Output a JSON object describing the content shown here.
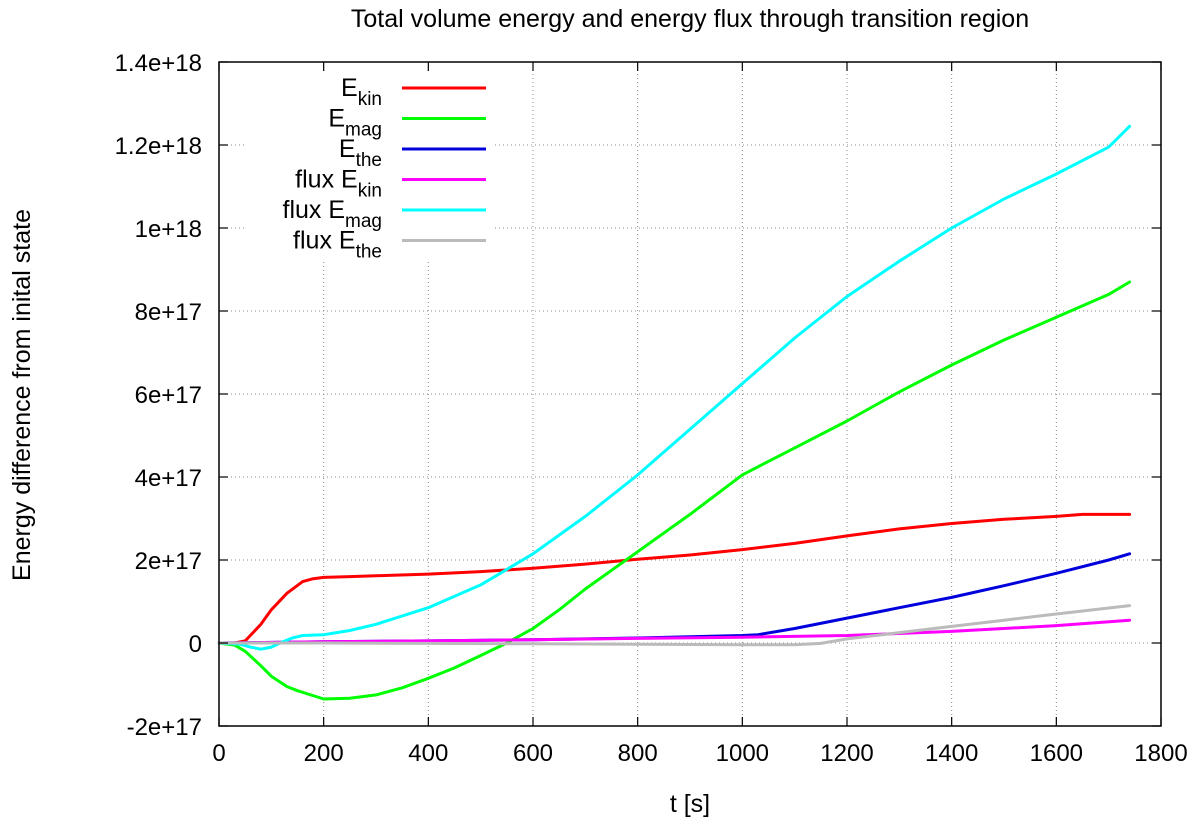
{
  "chart_data": {
    "type": "line",
    "title": "Total volume energy and energy flux through transition region",
    "xlabel": "t [s]",
    "ylabel": "Energy difference from inital state",
    "xlim": [
      0,
      1800
    ],
    "ylim": [
      -2e+17,
      1.4e+18
    ],
    "x_ticks": [
      0,
      200,
      400,
      600,
      800,
      1000,
      1200,
      1400,
      1600,
      1800
    ],
    "x_tick_labels": [
      "0",
      "200",
      "400",
      "600",
      "800",
      "1000",
      "1200",
      "1400",
      "1600",
      "1800"
    ],
    "y_ticks": [
      -2e+17,
      0,
      2e+17,
      4e+17,
      6e+17,
      8e+17,
      1e+18,
      1.2e+18,
      1.4e+18
    ],
    "y_tick_labels": [
      "-2e+17",
      "0",
      "2e+17",
      "4e+17",
      "6e+17",
      "8e+17",
      "1e+18",
      "1.2e+18",
      "1.4e+18"
    ],
    "grid": true,
    "legend_position": "top-left",
    "series": [
      {
        "name": "Ekin",
        "legend_prefix": "",
        "legend_main": "E",
        "legend_sub": "kin",
        "color": "#ff0000",
        "x": [
          0,
          30,
          50,
          80,
          100,
          130,
          160,
          180,
          200,
          250,
          300,
          400,
          500,
          600,
          700,
          800,
          900,
          1000,
          1100,
          1200,
          1300,
          1400,
          1500,
          1600,
          1650,
          1740
        ],
        "y": [
          0,
          0,
          5000000000000000.0,
          4.5e+16,
          8e+16,
          1.2e+17,
          1.48e+17,
          1.55e+17,
          1.58e+17,
          1.6e+17,
          1.62e+17,
          1.66e+17,
          1.72e+17,
          1.8e+17,
          1.9e+17,
          2.02e+17,
          2.12e+17,
          2.25e+17,
          2.4e+17,
          2.58e+17,
          2.75e+17,
          2.88e+17,
          2.98e+17,
          3.05e+17,
          3.1e+17,
          3.1e+17
        ]
      },
      {
        "name": "Emag",
        "legend_prefix": "",
        "legend_main": "E",
        "legend_sub": "mag",
        "color": "#00ff00",
        "x": [
          0,
          30,
          50,
          80,
          100,
          130,
          150,
          200,
          250,
          300,
          350,
          400,
          450,
          500,
          550,
          600,
          650,
          700,
          800,
          900,
          1000,
          1100,
          1200,
          1300,
          1400,
          1500,
          1600,
          1700,
          1740
        ],
        "y": [
          0,
          -5000000000000000.0,
          -2e+16,
          -5.5e+16,
          -8e+16,
          -1.05e+17,
          -1.15e+17,
          -1.35e+17,
          -1.33e+17,
          -1.25e+17,
          -1.08e+17,
          -8.5e+16,
          -6e+16,
          -3e+16,
          0,
          3.5e+16,
          8e+16,
          1.3e+17,
          2.2e+17,
          3.1e+17,
          4.05e+17,
          4.7e+17,
          5.35e+17,
          6.05e+17,
          6.7e+17,
          7.3e+17,
          7.85e+17,
          8.4e+17,
          8.7e+17
        ]
      },
      {
        "name": "Ethe",
        "legend_prefix": "",
        "legend_main": "E",
        "legend_sub": "the",
        "color": "#0000dd",
        "x": [
          0,
          200,
          400,
          600,
          800,
          1000,
          1030,
          1100,
          1200,
          1300,
          1400,
          1500,
          1600,
          1700,
          1740
        ],
        "y": [
          0,
          3000000000000000.0,
          5000000000000000.0,
          8000000000000000.0,
          1.2e+16,
          1.8e+16,
          2e+16,
          3.5e+16,
          6e+16,
          8.5e+16,
          1.1e+17,
          1.38e+17,
          1.68e+17,
          2e+17,
          2.15e+17
        ]
      },
      {
        "name": "flux Ekin",
        "legend_prefix": "flux ",
        "legend_main": "E",
        "legend_sub": "kin",
        "color": "#ff00ff",
        "x": [
          0,
          200,
          400,
          600,
          800,
          1000,
          1200,
          1400,
          1600,
          1740
        ],
        "y": [
          0,
          3000000000000000.0,
          5000000000000000.0,
          8000000000000000.0,
          1.1e+16,
          1.4e+16,
          1.8e+16,
          2.8e+16,
          4.2e+16,
          5.5e+16
        ]
      },
      {
        "name": "flux Emag",
        "legend_prefix": "flux ",
        "legend_main": "E",
        "legend_sub": "mag",
        "color": "#00ffff",
        "x": [
          0,
          40,
          60,
          80,
          100,
          120,
          140,
          160,
          200,
          250,
          300,
          400,
          500,
          600,
          700,
          800,
          900,
          1000,
          1100,
          1200,
          1300,
          1400,
          1500,
          1600,
          1700,
          1740
        ],
        "y": [
          0,
          -3000000000000000.0,
          -1e+16,
          -1.5e+16,
          -1e+16,
          2000000000000000.0,
          1.2e+16,
          1.8e+16,
          2e+16,
          3e+16,
          4.5e+16,
          8.5e+16,
          1.4e+17,
          2.15e+17,
          3.05e+17,
          4.05e+17,
          5.15e+17,
          6.25e+17,
          7.35e+17,
          8.35e+17,
          9.2e+17,
          1e+18,
          1.07e+18,
          1.13e+18,
          1.195e+18,
          1.245e+18
        ]
      },
      {
        "name": "flux Ethe",
        "legend_prefix": "flux ",
        "legend_main": "E",
        "legend_sub": "the",
        "color": "#bbbbbb",
        "x": [
          0,
          200,
          400,
          600,
          800,
          1000,
          1100,
          1150,
          1200,
          1300,
          1400,
          1500,
          1600,
          1740
        ],
        "y": [
          0,
          0,
          -1000000000000000.0,
          -2000000000000000.0,
          -3000000000000000.0,
          -4000000000000000.0,
          -4000000000000000.0,
          -1000000000000000.0,
          1e+16,
          2.5e+16,
          4e+16,
          5.5e+16,
          7e+16,
          9e+16
        ]
      }
    ]
  }
}
